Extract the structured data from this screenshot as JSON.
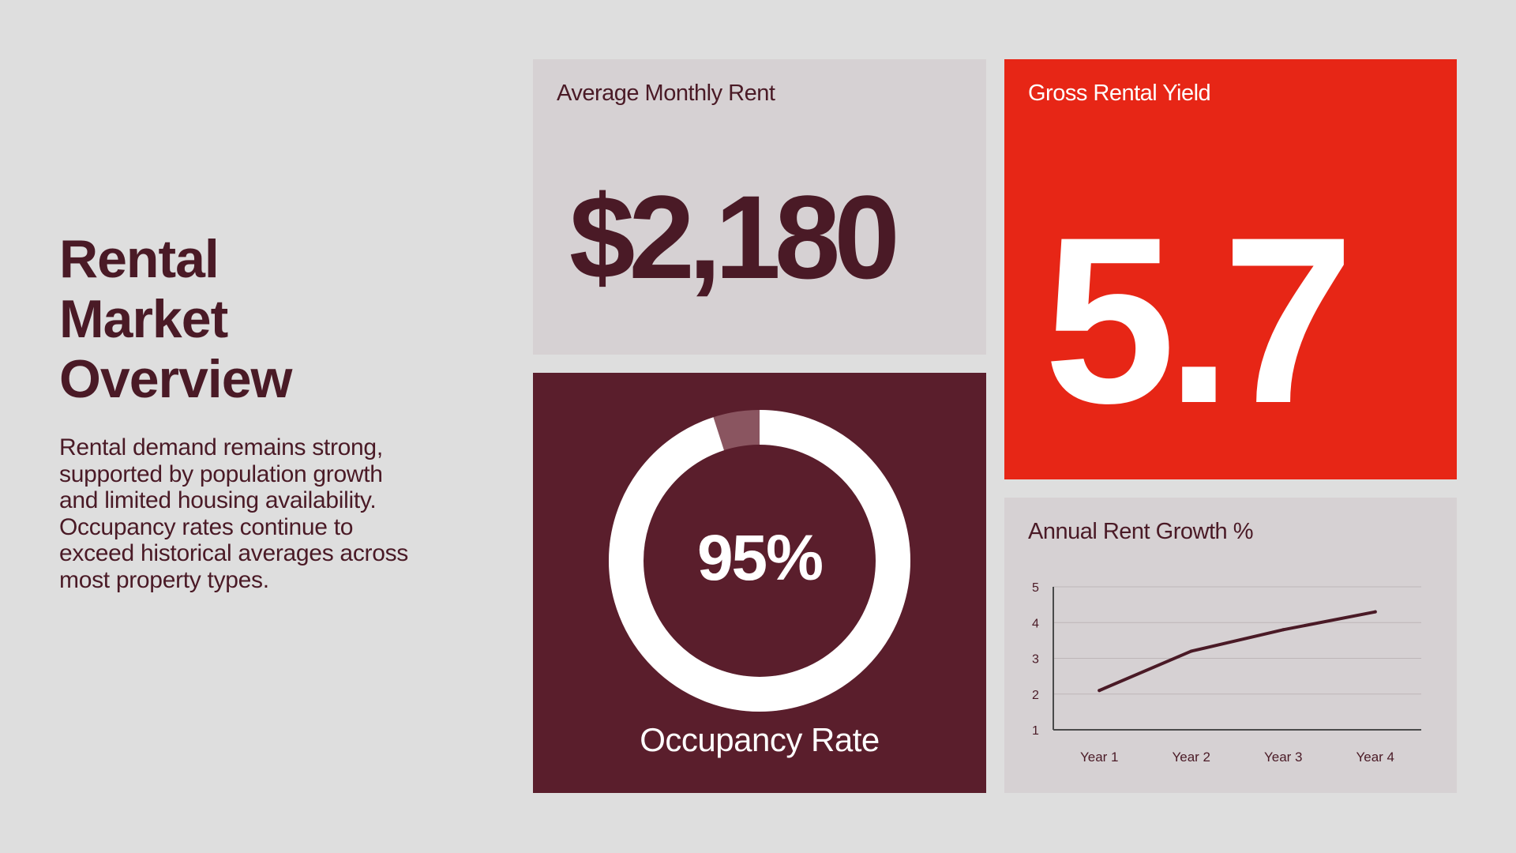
{
  "intro": {
    "title": "Rental\nMarket\nOverview",
    "body": "Rental demand remains strong, supported by population growth and limited housing availability. Occupancy rates continue to exceed historical averages across most property types."
  },
  "cards": {
    "rent": {
      "label": "Average Monthly Rent",
      "value": "$2,180"
    },
    "yield": {
      "label": "Gross Rental Yield",
      "value": "5.7"
    },
    "occupancy": {
      "value": "95%",
      "label": "Occupancy Rate",
      "fraction": 0.95
    },
    "growth": {
      "label": "Annual Rent Growth %"
    }
  },
  "colors": {
    "background": "#dedede",
    "dark": "#4a1a26",
    "maroon": "#5a1e2c",
    "red": "#e72616",
    "panel": "#d6d1d3",
    "donut_remainder": "#8a5560"
  },
  "chart_data": {
    "type": "line",
    "title": "Annual Rent Growth %",
    "categories": [
      "Year 1",
      "Year 2",
      "Year 3",
      "Year 4"
    ],
    "series": [
      {
        "values": [
          2.1,
          3.2,
          3.8,
          4.3
        ]
      }
    ],
    "y_ticks": [
      1,
      2,
      3,
      4,
      5
    ],
    "ylim": [
      1,
      5
    ],
    "grid": true,
    "xlabel": "",
    "ylabel": ""
  }
}
